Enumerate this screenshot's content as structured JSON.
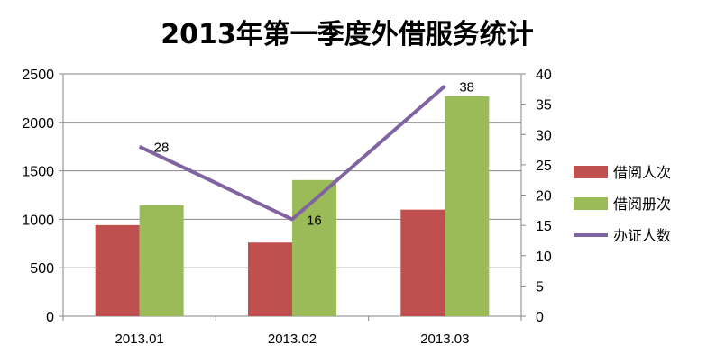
{
  "chart_data": {
    "type": "bar",
    "title": "2013年第一季度外借服务统计",
    "categories": [
      "2013.01",
      "2013.02",
      "2013.03"
    ],
    "ylim": [
      0,
      2500
    ],
    "yticks": [
      "0",
      "500",
      "1000",
      "1500",
      "2000",
      "2500"
    ],
    "y2lim": [
      0,
      40
    ],
    "y2ticks": [
      "0",
      "5",
      "10",
      "15",
      "20",
      "25",
      "30",
      "35",
      "40"
    ],
    "grid": true,
    "legend_position": "right",
    "series": [
      {
        "name": "借阅人次",
        "type": "bar",
        "axis": "left",
        "color": "#c0504d",
        "values": [
          940,
          760,
          1100
        ]
      },
      {
        "name": "借阅册次",
        "type": "bar",
        "axis": "left",
        "color": "#9bbb59",
        "values": [
          1145,
          1405,
          2270
        ]
      },
      {
        "name": "办证人数",
        "type": "line",
        "axis": "right",
        "color": "#8064a2",
        "values": [
          28,
          16,
          38
        ],
        "data_labels": [
          "28",
          "16",
          "38"
        ]
      }
    ]
  }
}
